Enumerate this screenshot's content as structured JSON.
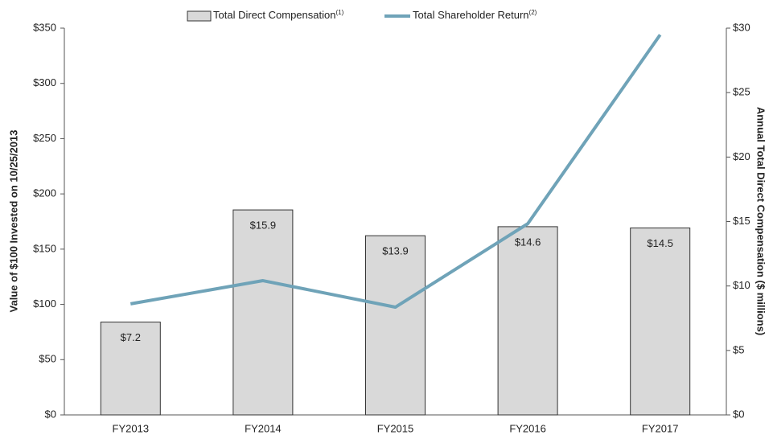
{
  "chart_data": {
    "type": "bar_line",
    "categories": [
      "FY2013",
      "FY2014",
      "FY2015",
      "FY2016",
      "FY2017"
    ],
    "series": [
      {
        "name": "Total Direct Compensation",
        "note_ref": "(1)",
        "type": "bar",
        "axis": "y2",
        "color": "#d9d9d9",
        "values": [
          7.2,
          15.9,
          13.9,
          14.6,
          14.5
        ],
        "value_labels": [
          "$7.2",
          "$15.9",
          "$13.9",
          "$14.6",
          "$14.5"
        ]
      },
      {
        "name": "Total Shareholder Return",
        "note_ref": "(2)",
        "type": "line",
        "axis": "y",
        "color": "#6fa3b8",
        "values": [
          100.5,
          121.5,
          97.5,
          173,
          344
        ]
      }
    ],
    "ylabel": "Value of $100 Invested on 10/25/2013",
    "y2label": "Annual Total Direct Compensation ($ millions)",
    "ylim": [
      0,
      350
    ],
    "yticks": [
      {
        "value": 0,
        "label": "$0"
      },
      {
        "value": 50,
        "label": "$50"
      },
      {
        "value": 100,
        "label": "$100"
      },
      {
        "value": 150,
        "label": "$150"
      },
      {
        "value": 200,
        "label": "$200"
      },
      {
        "value": 250,
        "label": "$250"
      },
      {
        "value": 300,
        "label": "$300"
      },
      {
        "value": 350,
        "label": "$350"
      }
    ],
    "y2lim": [
      0,
      30
    ],
    "y2ticks": [
      {
        "value": 0,
        "label": "$0"
      },
      {
        "value": 5,
        "label": "$5"
      },
      {
        "value": 10,
        "label": "$10"
      },
      {
        "value": 15,
        "label": "$15"
      },
      {
        "value": 20,
        "label": "$20"
      },
      {
        "value": 25,
        "label": "$25"
      },
      {
        "value": 30,
        "label": "$30"
      }
    ],
    "legend": "top",
    "grid": false
  }
}
